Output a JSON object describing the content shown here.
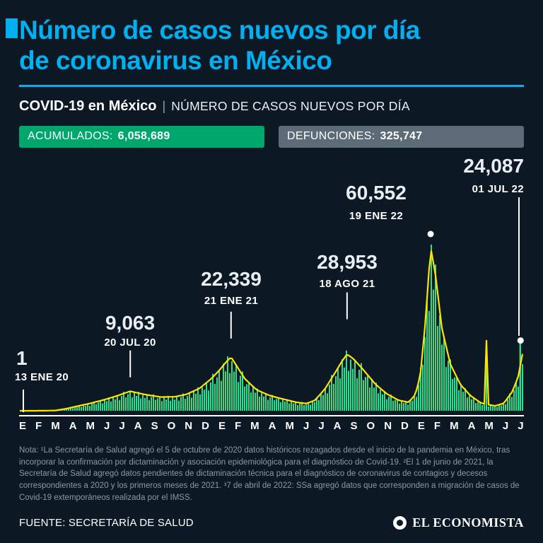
{
  "colors": {
    "background": "#0c1824",
    "accent_cyan": "#00b0f0",
    "badge_green": "#00a76d",
    "badge_gray": "#5d6b78",
    "chart_bars_green": "#2ee08c",
    "chart_line_yellow": "#ffe500",
    "marker_white": "#ffffff",
    "note_gray": "#8c99a6"
  },
  "header": {
    "title_line1": "Número de casos nuevos por día",
    "title_line2": "de coronavirus en México",
    "subtitle_bold": "COVID-19 en México",
    "subtitle_separator": "|",
    "subtitle_rest": "NÚMERO DE CASOS NUEVOS POR DÍA"
  },
  "stats": {
    "accumulated": {
      "label": "ACUMULADOS:",
      "value": "6,058,689"
    },
    "deaths": {
      "label": "DEFUNCIONES:",
      "value": "325,747"
    }
  },
  "chart_data": {
    "type": "area",
    "title": "Número de casos nuevos por día de coronavirus en México",
    "x_unit": "months since January 2020",
    "x_span_months": 30.2,
    "ylim": [
      0,
      60552
    ],
    "grid": false,
    "legend": false,
    "colors": {
      "bars": "#2ee08c",
      "line": "#ffe500",
      "marker": "#ffffff"
    },
    "keypoints": [
      [
        0,
        0
      ],
      [
        0.45,
        1
      ],
      [
        1.5,
        20
      ],
      [
        2.2,
        120
      ],
      [
        2.8,
        700
      ],
      [
        3.5,
        1600
      ],
      [
        4.3,
        2600
      ],
      [
        5.1,
        3800
      ],
      [
        5.8,
        5000
      ],
      [
        6.3,
        6000
      ],
      [
        6.65,
        6700
      ],
      [
        7.1,
        6100
      ],
      [
        7.7,
        5400
      ],
      [
        8.5,
        4700
      ],
      [
        9.3,
        4800
      ],
      [
        10,
        5600
      ],
      [
        10.8,
        7700
      ],
      [
        11.5,
        11000
      ],
      [
        12,
        14000
      ],
      [
        12.4,
        16800
      ],
      [
        12.68,
        18400
      ],
      [
        13,
        15500
      ],
      [
        13.5,
        11000
      ],
      [
        14.2,
        7200
      ],
      [
        15,
        5200
      ],
      [
        15.8,
        4000
      ],
      [
        16.6,
        2900
      ],
      [
        17.2,
        2500
      ],
      [
        17.7,
        3600
      ],
      [
        18.3,
        7500
      ],
      [
        18.9,
        13000
      ],
      [
        19.3,
        16800
      ],
      [
        19.62,
        19400
      ],
      [
        20,
        17800
      ],
      [
        20.6,
        14000
      ],
      [
        21.3,
        9200
      ],
      [
        22,
        5800
      ],
      [
        22.7,
        3600
      ],
      [
        23.3,
        2900
      ],
      [
        23.7,
        5500
      ],
      [
        24,
        12000
      ],
      [
        24.3,
        30000
      ],
      [
        24.62,
        56000
      ],
      [
        24.9,
        47000
      ],
      [
        25.3,
        28000
      ],
      [
        25.8,
        16000
      ],
      [
        26.4,
        9000
      ],
      [
        27,
        5200
      ],
      [
        27.6,
        2800
      ],
      [
        27.85,
        2300
      ],
      [
        27.95,
        26000
      ],
      [
        28.05,
        2100
      ],
      [
        28.5,
        1700
      ],
      [
        29,
        2600
      ],
      [
        29.5,
        6500
      ],
      [
        29.85,
        11500
      ],
      [
        30.2,
        22000
      ]
    ],
    "annotations": [
      {
        "value": "1",
        "date": "13 ENE 20",
        "month": 0.45
      },
      {
        "value": "9,063",
        "date": "20 JUL 20",
        "month": 6.65
      },
      {
        "value": "22,339",
        "date": "21 ENE 21",
        "month": 12.68
      },
      {
        "value": "28,953",
        "date": "18 AGO 21",
        "month": 19.62
      },
      {
        "value": "60,552",
        "date": "19 ENE 22",
        "month": 24.62
      },
      {
        "value": "24,087",
        "date": "01 JUL 22",
        "month": 30.0
      }
    ],
    "x_labels": [
      "E",
      "F",
      "M",
      "A",
      "M",
      "J",
      "J",
      "A",
      "S",
      "O",
      "N",
      "D",
      "E",
      "F",
      "M",
      "A",
      "M",
      "J",
      "J",
      "A",
      "S",
      "O",
      "N",
      "D",
      "E",
      "F",
      "M",
      "A",
      "M",
      "J",
      "J"
    ]
  },
  "notes": {
    "text": "Nota: ¹La Secretaría de Salud agregó el 5 de octubre de 2020 datos históricos rezagados desde el inicio de la pandemia en México, tras incorporar la confirmación por dictaminación y asociación epidemiológica para el diagnóstico de Covid-19. ²El 1 de junio de 2021, la Secretaría de Salud agregó datos pendientes de dictaminación técnica para el diagnóstico de coronavirus de contagios y decesos correspondientes a 2020 y los primeros meses de 2021. ³7 de abril de 2022: SSa agregó datos que corresponden a migración de casos de Covid-19 extemporáneos realizada por el IMSS."
  },
  "footer": {
    "source": "FUENTE: SECRETARÍA DE SALUD",
    "brand": "EL ECONOMISTA"
  }
}
